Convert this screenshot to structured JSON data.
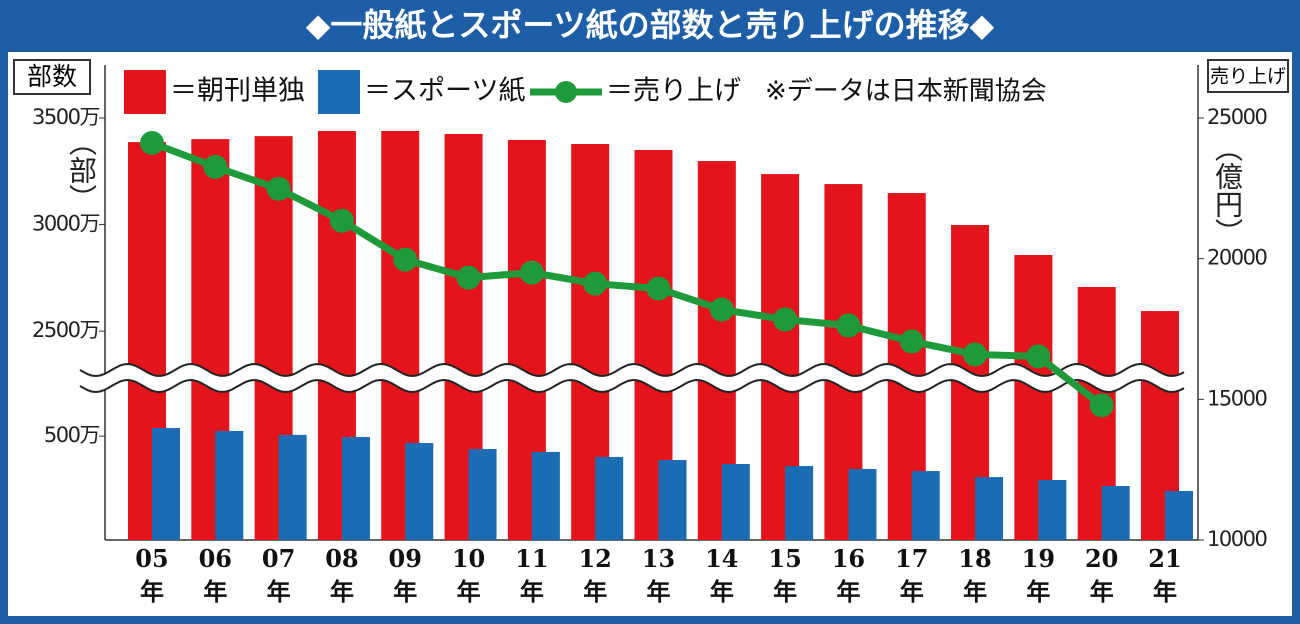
{
  "chart_data": {
    "type": "bar-line",
    "title": "◆一般紙とスポーツ紙の部数と売り上げの推移◆",
    "y_label": "部数",
    "y_unit": "（部）",
    "y2_label": "売り上げ",
    "y2_unit": "（億円）",
    "note": "※データは日本新聞協会",
    "categories": [
      "05年",
      "06年",
      "07年",
      "08年",
      "09年",
      "10年",
      "11年",
      "12年",
      "13年",
      "14年",
      "15年",
      "16年",
      "17年",
      "18年",
      "19年",
      "20年",
      "21年"
    ],
    "series": [
      {
        "name": "＝朝刊単独",
        "kind": "bar",
        "color": "#e3141c",
        "values": [
          3387,
          3401,
          3415,
          3439,
          3439,
          3425,
          3397,
          3378,
          3350,
          3298,
          3237,
          3190,
          3148,
          2998,
          2857,
          2707,
          2594
        ]
      },
      {
        "name": "＝スポーツ紙",
        "kind": "bar",
        "color": "#1a6db3",
        "values": [
          539,
          525,
          506,
          496,
          467,
          438,
          424,
          400,
          385,
          366,
          356,
          342,
          332,
          303,
          289,
          260,
          236
        ]
      },
      {
        "name": "＝売り上げ",
        "kind": "line",
        "axis": "y2",
        "color": "#1f9a3b",
        "values": [
          24113,
          23262,
          22482,
          21348,
          19965,
          19326,
          19504,
          19113,
          18936,
          18191,
          17837,
          17624,
          17057,
          16596,
          16525,
          14787,
          null
        ]
      }
    ],
    "ylim": [
      0,
      3500
    ],
    "axis_break": [
      780,
      2280
    ],
    "yticks": [
      {
        "value": 500,
        "label": "500万"
      },
      {
        "value": 2500,
        "label": "2500万"
      },
      {
        "value": 3000,
        "label": "3000万"
      },
      {
        "value": 3500,
        "label": "3500万"
      }
    ],
    "y2lim": [
      10000,
      25000
    ],
    "y2ticks": [
      10000,
      15000,
      20000,
      25000
    ]
  }
}
